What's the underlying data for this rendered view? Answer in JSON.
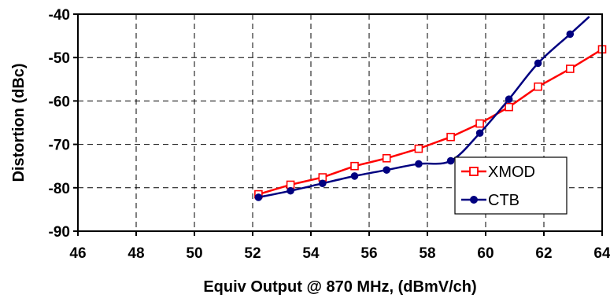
{
  "chart_data": {
    "type": "line",
    "title": "",
    "xlabel": "Equiv Output @ 870 MHz, (dBmV/ch)",
    "ylabel": "Distortion (dBc)",
    "xlim": [
      46,
      64
    ],
    "ylim": [
      -90,
      -40
    ],
    "xticks": [
      "46",
      "48",
      "50",
      "52",
      "54",
      "56",
      "58",
      "60",
      "62",
      "64"
    ],
    "yticks": [
      "-40",
      "-50",
      "-60",
      "-70",
      "-80",
      "-90"
    ],
    "grid": true,
    "legend_position": "bottom-right",
    "series": [
      {
        "name": "XMOD",
        "color": "#ff0000",
        "marker": "open-square",
        "x": [
          52.2,
          53.3,
          54.4,
          55.5,
          56.6,
          57.7,
          58.8,
          59.8,
          60.8,
          61.8,
          62.9,
          64.0
        ],
        "y": [
          -81.5,
          -79.3,
          -77.6,
          -75.0,
          -73.2,
          -71.0,
          -68.3,
          -65.2,
          -61.4,
          -56.7,
          -52.6,
          -48.1
        ]
      },
      {
        "name": "CTB",
        "color": "#000080",
        "marker": "filled-circle",
        "x": [
          52.2,
          53.3,
          54.4,
          55.5,
          56.6,
          57.7,
          58.8,
          59.8,
          60.8,
          61.8,
          62.9
        ],
        "y": [
          -82.2,
          -80.7,
          -79.0,
          -77.3,
          -75.9,
          -74.5,
          -73.8,
          -67.4,
          -59.6,
          -51.3,
          -44.6
        ]
      }
    ]
  }
}
